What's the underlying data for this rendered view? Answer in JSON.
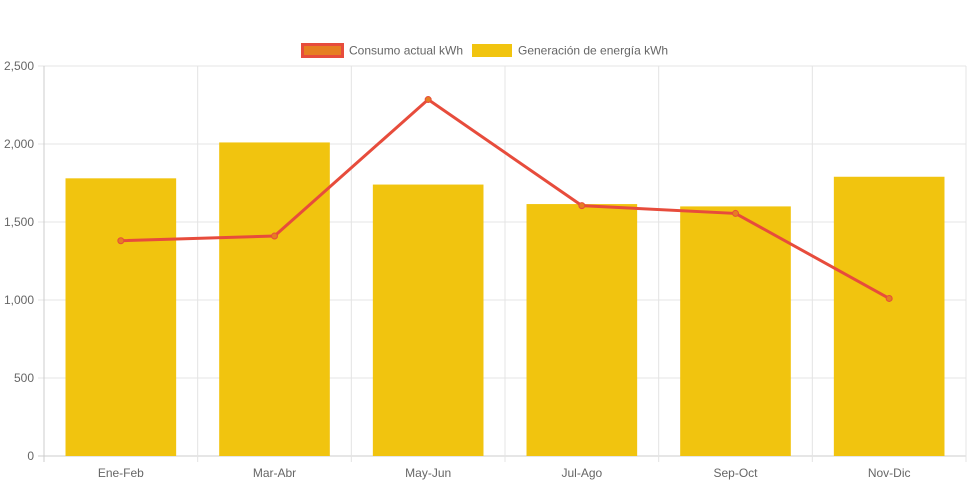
{
  "chart_data": {
    "type": "bar",
    "title": "",
    "xlabel": "",
    "ylabel": "",
    "categories": [
      "Ene-Feb",
      "Mar-Abr",
      "May-Jun",
      "Jul-Ago",
      "Sep-Oct",
      "Nov-Dic"
    ],
    "ylim": [
      0,
      2500
    ],
    "yticks": [
      0,
      500,
      1000,
      1500,
      2000,
      2500
    ],
    "ytick_labels": [
      "0",
      "500",
      "1,000",
      "1,500",
      "2,000",
      "2,500"
    ],
    "grid": true,
    "legend_position": "top",
    "series": [
      {
        "name": "Consumo actual kWh",
        "type": "line",
        "color": "#e74c3c",
        "fill": "#e67e22",
        "values": [
          1380,
          1410,
          2285,
          1605,
          1555,
          1010
        ]
      },
      {
        "name": "Generación de energía kWh",
        "type": "bar",
        "color": "#f1c40f",
        "values": [
          1780,
          2010,
          1740,
          1615,
          1600,
          1790
        ]
      }
    ]
  }
}
